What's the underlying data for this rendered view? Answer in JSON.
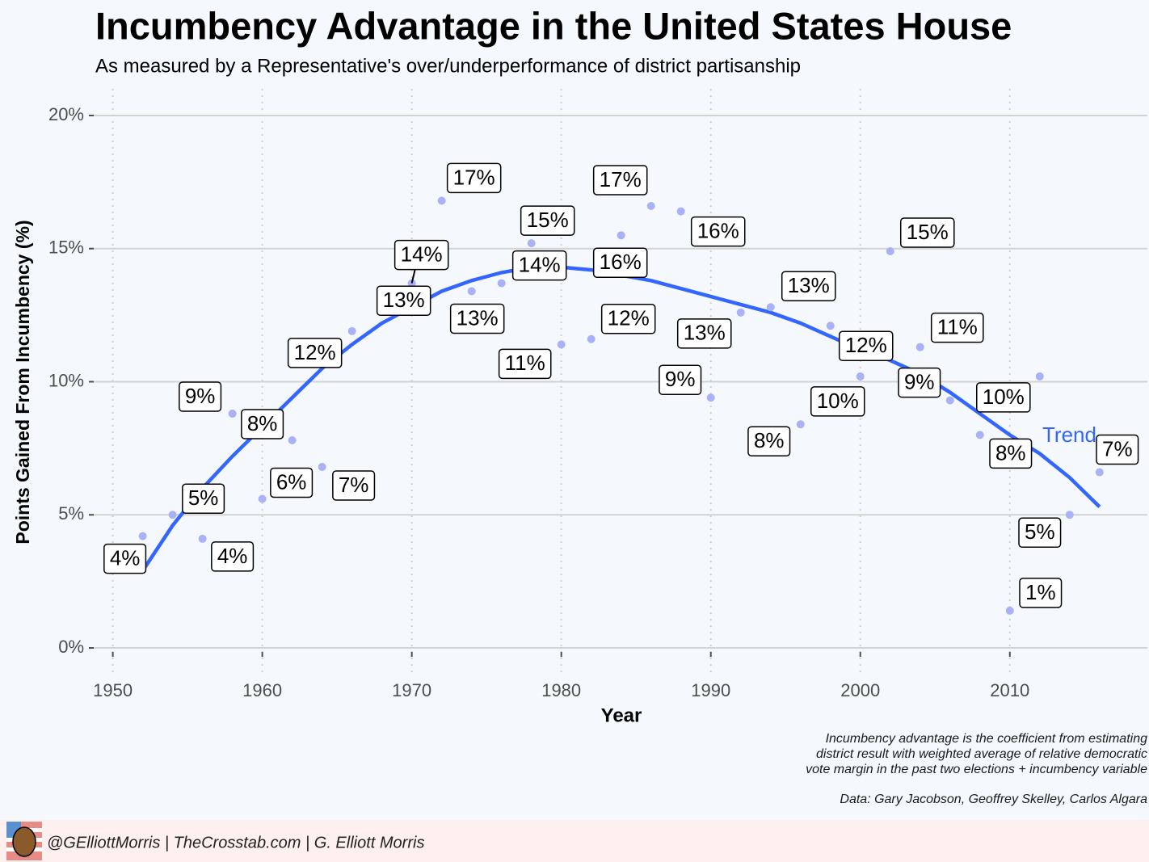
{
  "chart_data": {
    "type": "scatter",
    "title": "Incumbency Advantage in the United States House",
    "subtitle": "As measured by a Representative's over/underperformance of district partisanship",
    "x_label": "Year",
    "y_label": "Points Gained From Incumbency (%)",
    "x": [
      1952,
      1954,
      1956,
      1958,
      1960,
      1962,
      1964,
      1966,
      1968,
      1970,
      1972,
      1974,
      1976,
      1978,
      1980,
      1982,
      1984,
      1986,
      1988,
      1990,
      1992,
      1994,
      1996,
      1998,
      2000,
      2002,
      2004,
      2006,
      2008,
      2010,
      2012,
      2014,
      2016
    ],
    "values": [
      4.2,
      5.0,
      4.1,
      8.8,
      5.6,
      7.8,
      6.8,
      11.9,
      12.8,
      13.7,
      16.8,
      13.4,
      13.7,
      15.2,
      11.4,
      11.6,
      15.5,
      16.6,
      16.4,
      9.4,
      12.6,
      12.8,
      8.4,
      12.1,
      10.2,
      14.9,
      11.3,
      9.3,
      8.0,
      1.4,
      10.2,
      5.0,
      6.6
    ],
    "value_labels": [
      "4%",
      "5%",
      "4%",
      "9%",
      "6%",
      "8%",
      "7%",
      "12%",
      "13%",
      "14%",
      "17%",
      "13%",
      "14%",
      "15%",
      "11%",
      "12%",
      "16%",
      "17%",
      "16%",
      "9%",
      "13%",
      "13%",
      "8%",
      "12%",
      "10%",
      "15%",
      "11%",
      "9%",
      "8%",
      "1%",
      "10%",
      "5%",
      "7%"
    ],
    "color": "#aab2f7",
    "trend": {
      "name": "Trend",
      "color": "#3366ff",
      "x": [
        1952,
        1954,
        1956,
        1958,
        1960,
        1962,
        1964,
        1966,
        1968,
        1970,
        1972,
        1974,
        1976,
        1978,
        1980,
        1982,
        1984,
        1986,
        1988,
        1990,
        1992,
        1994,
        1996,
        1998,
        2000,
        2002,
        2004,
        2006,
        2008,
        2010,
        2012,
        2014,
        2016
      ],
      "values": [
        2.9,
        4.6,
        6.0,
        7.2,
        8.3,
        9.4,
        10.5,
        11.4,
        12.2,
        12.8,
        13.4,
        13.8,
        14.1,
        14.3,
        14.3,
        14.2,
        14.0,
        13.8,
        13.5,
        13.2,
        12.9,
        12.6,
        12.2,
        11.7,
        11.2,
        10.8,
        10.3,
        9.6,
        8.8,
        8.0,
        7.3,
        6.4,
        5.3
      ]
    },
    "xlim": [
      1948.4,
      2019.2
    ],
    "xticks": [
      1950,
      1960,
      1970,
      1980,
      1990,
      2000,
      2010
    ],
    "ylim": [
      -1,
      21
    ],
    "yticks": [
      {
        "value": 0,
        "label": "0%"
      },
      {
        "value": 5,
        "label": "5%"
      },
      {
        "value": 10,
        "label": "10%"
      },
      {
        "value": 15,
        "label": "15%"
      },
      {
        "value": 20,
        "label": "20%"
      }
    ],
    "grid": true,
    "notes": [
      "Incumbency advantage is the coefficient from estimating",
      "district result with weighted average of relative democratic",
      "vote margin in the past two elections + incumbency variable"
    ],
    "source": "Data: Gary Jacobson, Geoffrey Skelley, Carlos Algara",
    "footer": "@GElliottMorris | TheCrosstab.com | G. Elliott Morris"
  }
}
